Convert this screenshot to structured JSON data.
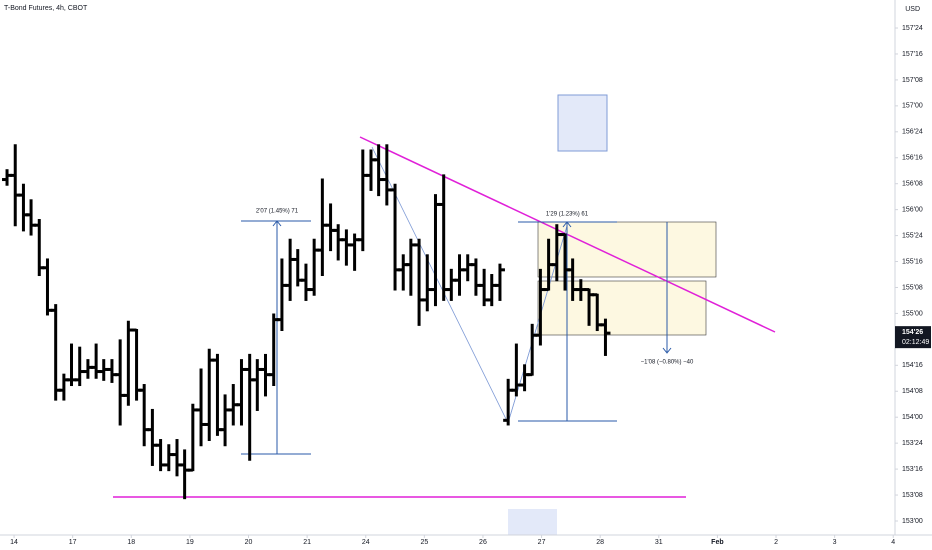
{
  "header": {
    "symbol": "T-Bond Futures, 4h, CBOT",
    "currency": "USD"
  },
  "chart_data": {
    "type": "ohlc",
    "color": "#000000",
    "x": [
      -0.12,
      0.02,
      0.16,
      0.29,
      0.43,
      0.57,
      0.71,
      0.85,
      0.98,
      1.12,
      1.26,
      1.4,
      1.53,
      1.67,
      1.81,
      1.95,
      2.09,
      2.22,
      2.36,
      2.5,
      2.64,
      2.78,
      2.91,
      3.05,
      3.19,
      3.33,
      3.47,
      3.6,
      3.74,
      3.88,
      4.02,
      4.15,
      4.29,
      4.43,
      4.57,
      4.71,
      4.84,
      4.98,
      5.12,
      5.26,
      5.4,
      5.53,
      5.67,
      5.81,
      5.95,
      6.09,
      6.22,
      6.36,
      6.5,
      6.64,
      6.77,
      6.91,
      7.05,
      7.19,
      7.33,
      7.46,
      7.6,
      7.74,
      7.88,
      8.02,
      8.15,
      8.29,
      8.43,
      8.57,
      8.71,
      8.84,
      8.98,
      9.12,
      9.26,
      9.4,
      9.53,
      9.67,
      9.81,
      9.95,
      10.09
    ],
    "open": [
      156.29,
      156.33,
      156.14,
      155.95,
      155.85,
      155.44,
      155.03,
      154.26,
      154.36,
      154.36,
      154.44,
      154.48,
      154.44,
      154.46,
      154.41,
      154.21,
      154.84,
      154.26,
      153.88,
      153.73,
      153.54,
      153.64,
      153.54,
      153.49,
      154.07,
      153.93,
      154.55,
      153.88,
      154.07,
      154.12,
      154.46,
      154.36,
      154.46,
      154.41,
      154.94,
      155.27,
      155.52,
      155.32,
      155.23,
      155.61,
      155.85,
      155.8,
      155.71,
      155.66,
      155.71,
      156.33,
      156.48,
      156.29,
      156.19,
      155.42,
      155.47,
      155.66,
      155.13,
      155.23,
      156.05,
      155.23,
      155.32,
      155.42,
      155.47,
      155.27,
      155.13,
      155.27,
      153.97,
      154.26,
      154.31,
      154.41,
      154.79,
      155.23,
      155.47,
      155.76,
      155.42,
      155.23,
      155.23,
      155.18,
      154.89
    ],
    "high": [
      156.38,
      156.62,
      156.24,
      156.09,
      155.9,
      155.52,
      155.08,
      154.41,
      154.7,
      154.67,
      154.55,
      154.7,
      154.55,
      154.55,
      154.74,
      154.92,
      154.84,
      154.31,
      154.07,
      153.78,
      153.73,
      153.78,
      153.68,
      154.12,
      154.46,
      154.65,
      154.6,
      154.21,
      154.31,
      154.55,
      154.6,
      154.55,
      154.6,
      154.99,
      155.52,
      155.71,
      155.61,
      155.47,
      155.71,
      156.29,
      156.05,
      155.85,
      155.8,
      155.76,
      156.57,
      156.57,
      156.62,
      156.62,
      156.24,
      155.56,
      155.71,
      155.71,
      155.56,
      156.14,
      156.33,
      155.42,
      155.56,
      155.56,
      155.52,
      155.42,
      155.37,
      155.47,
      154.36,
      154.7,
      154.5,
      154.89,
      155.42,
      155.71,
      155.85,
      155.76,
      155.52,
      155.32,
      155.23,
      155.18,
      154.94
    ],
    "low": [
      156.24,
      155.85,
      155.8,
      155.76,
      155.37,
      154.99,
      154.17,
      154.17,
      154.31,
      154.31,
      154.38,
      154.38,
      154.36,
      154.34,
      153.93,
      154.12,
      154.17,
      153.73,
      153.54,
      153.49,
      153.49,
      153.44,
      153.22,
      153.49,
      153.73,
      153.78,
      153.83,
      153.73,
      153.93,
      153.93,
      153.59,
      154.07,
      154.21,
      154.31,
      154.84,
      155.13,
      155.27,
      155.13,
      155.18,
      155.37,
      155.61,
      155.52,
      155.47,
      155.42,
      155.61,
      156.19,
      156.14,
      156.05,
      155.23,
      155.23,
      155.18,
      154.89,
      155.03,
      155.08,
      155.13,
      155.13,
      155.18,
      155.32,
      155.18,
      155.08,
      155.08,
      155.13,
      153.93,
      154.21,
      154.26,
      154.41,
      154.7,
      155.23,
      155.32,
      155.23,
      155.13,
      155.13,
      154.89,
      154.84,
      154.6
    ],
    "close": [
      156.33,
      156.14,
      155.95,
      155.85,
      155.44,
      155.03,
      154.26,
      154.36,
      154.36,
      154.44,
      154.48,
      154.44,
      154.46,
      154.41,
      154.21,
      154.84,
      154.26,
      153.88,
      153.73,
      153.54,
      153.64,
      153.54,
      153.49,
      154.07,
      153.93,
      154.55,
      153.88,
      154.07,
      154.12,
      154.46,
      154.36,
      154.46,
      154.41,
      154.94,
      155.27,
      155.52,
      155.32,
      155.23,
      155.61,
      155.85,
      155.8,
      155.71,
      155.66,
      155.71,
      156.33,
      156.48,
      156.29,
      156.19,
      155.42,
      155.47,
      155.66,
      155.13,
      155.23,
      156.05,
      155.23,
      155.32,
      155.42,
      155.47,
      155.27,
      155.13,
      155.27,
      155.42,
      154.26,
      154.31,
      154.41,
      154.79,
      155.23,
      155.47,
      155.76,
      155.42,
      155.23,
      155.23,
      155.18,
      154.89,
      154.81
    ],
    "xlim": [
      -0.24,
      15.03
    ],
    "ylim": [
      152.865,
      158.02
    ],
    "xticks": [
      {
        "value": 0,
        "label": "14"
      },
      {
        "value": 1,
        "label": "17"
      },
      {
        "value": 2,
        "label": "18"
      },
      {
        "value": 3,
        "label": "19"
      },
      {
        "value": 4,
        "label": "20"
      },
      {
        "value": 5,
        "label": "21"
      },
      {
        "value": 6,
        "label": "24"
      },
      {
        "value": 7,
        "label": "25"
      },
      {
        "value": 8,
        "label": "26"
      },
      {
        "value": 9,
        "label": "27"
      },
      {
        "value": 10,
        "label": "28"
      },
      {
        "value": 11,
        "label": "31"
      },
      {
        "value": 12,
        "label": "Feb"
      },
      {
        "value": 13,
        "label": "2"
      },
      {
        "value": 14,
        "label": "3"
      },
      {
        "value": 15,
        "label": "4"
      }
    ],
    "yticks": [
      {
        "value": 157.75,
        "label": "157'24"
      },
      {
        "value": 157.5,
        "label": "157'16"
      },
      {
        "value": 157.25,
        "label": "157'08"
      },
      {
        "value": 157,
        "label": "157'00"
      },
      {
        "value": 156.75,
        "label": "156'24"
      },
      {
        "value": 156.5,
        "label": "156'16"
      },
      {
        "value": 156.25,
        "label": "156'08"
      },
      {
        "value": 156,
        "label": "156'00"
      },
      {
        "value": 155.75,
        "label": "155'24"
      },
      {
        "value": 155.5,
        "label": "155'16"
      },
      {
        "value": 155.25,
        "label": "155'08"
      },
      {
        "value": 155,
        "label": "155'00"
      },
      {
        "value": 154.5,
        "label": "154'16"
      },
      {
        "value": 154.25,
        "label": "154'08"
      },
      {
        "value": 154,
        "label": "154'00"
      },
      {
        "value": 153.75,
        "label": "153'24"
      },
      {
        "value": 153.5,
        "label": "153'16"
      },
      {
        "value": 153.25,
        "label": "153'08"
      },
      {
        "value": 153,
        "label": "153'00"
      }
    ],
    "last_price_label": "154'26",
    "countdown": "02:12:49",
    "annotations": [
      "2'07 (1.45%) 71",
      "1'29 (1.23%) 61",
      "−1'08 (−0.80%) −40"
    ]
  }
}
